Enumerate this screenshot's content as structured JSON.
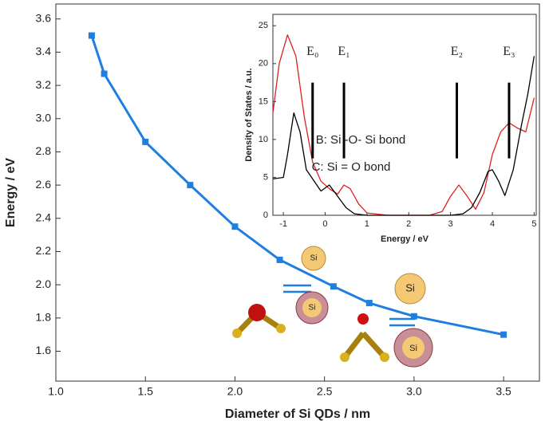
{
  "chart_data": [
    {
      "type": "line",
      "x_label": "Diameter of Si QDs / nm",
      "y_label": "Energy / eV",
      "series": [
        {
          "color": "#1e7fe0",
          "x": [
            1.2,
            1.27,
            1.5,
            1.75,
            2.0,
            2.25,
            2.55,
            2.75,
            3.0,
            3.5
          ],
          "values": [
            3.5,
            3.27,
            2.86,
            2.6,
            2.35,
            2.15,
            1.99,
            1.89,
            1.81,
            1.7
          ]
        }
      ],
      "xlim": [
        1.0,
        3.7
      ],
      "xticks": [
        {
          "value": 1,
          "label": "1.0"
        },
        1.5,
        {
          "value": 2,
          "label": "2.0"
        },
        2.5,
        {
          "value": 3,
          "label": "3.0"
        },
        3.5
      ],
      "ylim": [
        1.42,
        3.69
      ],
      "yticks": [
        1.6,
        1.8,
        {
          "value": 2,
          "label": "2.0"
        },
        2.2,
        2.4,
        2.6,
        2.8,
        {
          "value": 3,
          "label": "3.0"
        },
        3.2,
        3.4,
        3.6
      ],
      "grid": false,
      "markers": true,
      "annotations": [
        "Si",
        "Si",
        "Si",
        "Si"
      ]
    },
    {
      "type": "line",
      "x_label": "Energy / eV",
      "y_label": "Density of States / a.u.",
      "series": [
        {
          "color": "#e02020",
          "x": [
            -1.25,
            -1.1,
            -0.9,
            -0.7,
            -0.5,
            -0.3,
            -0.1,
            0.1,
            0.3,
            0.45,
            0.6,
            0.8,
            1.0,
            1.5,
            2.0,
            2.5,
            2.8,
            3.0,
            3.2,
            3.4,
            3.6,
            3.8,
            4.0,
            4.2,
            4.4,
            4.6,
            4.8,
            5.0
          ],
          "values": [
            13.5,
            20,
            23.8,
            21,
            13,
            7,
            4.5,
            3.5,
            2.8,
            4,
            3.5,
            1.5,
            0.3,
            0,
            0,
            0,
            0.5,
            2.5,
            4,
            2.5,
            0.8,
            3,
            8,
            11,
            12.2,
            11.5,
            11,
            15.5
          ]
        },
        {
          "color": "#000000",
          "x": [
            -1.25,
            -1.0,
            -0.9,
            -0.75,
            -0.6,
            -0.45,
            -0.3,
            -0.1,
            0.1,
            0.3,
            0.5,
            0.7,
            1.0,
            2.0,
            3.0,
            3.3,
            3.5,
            3.7,
            3.9,
            4.0,
            4.15,
            4.3,
            4.5,
            4.7,
            4.85,
            5.0
          ],
          "values": [
            4.8,
            5,
            8,
            13.5,
            11,
            6,
            4.8,
            3.2,
            4,
            2.5,
            1,
            0.2,
            0,
            0,
            0,
            0.2,
            1,
            3,
            5.8,
            6,
            4.5,
            2.6,
            6,
            12,
            16,
            21
          ]
        }
      ],
      "xlim": [
        -1.25,
        5.05
      ],
      "xticks": [
        -1,
        0,
        1,
        2,
        3,
        4,
        5
      ],
      "ylim": [
        0,
        26.5
      ],
      "yticks": [
        0,
        5,
        10,
        15,
        20,
        25
      ],
      "grid": false,
      "markers": false,
      "levels": [
        {
          "label": "E₀",
          "value": -0.3
        },
        {
          "label": "E₁",
          "value": 0.45
        },
        {
          "label": "E₂",
          "value": 3.15
        },
        {
          "label": "E₃",
          "value": 4.4
        }
      ],
      "annotations": [
        "B: Si -O- Si bond",
        "C: Si = O bond"
      ]
    }
  ]
}
